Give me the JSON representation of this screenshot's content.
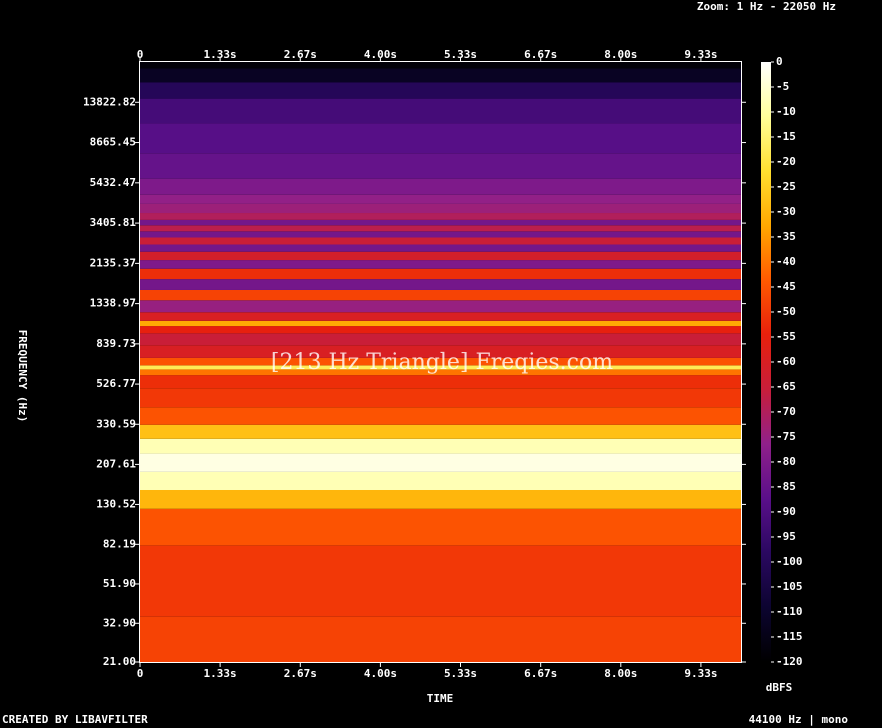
{
  "chart_data": {
    "type": "spectrogram",
    "title": "Zoom: 1 Hz - 22050 Hz",
    "watermark": "[213 Hz Triangle] Freqies.com",
    "xlabel": "TIME",
    "ylabel": "FREQUENCY (Hz)",
    "colorbar_label": "dBFS",
    "footer_left": "CREATED BY LIBAVFILTER",
    "footer_right": "44100 Hz | mono",
    "ylog": true,
    "xlim": [
      0,
      10
    ],
    "xticks": [
      0,
      {
        "value": 1.333,
        "label": "1.33s"
      },
      {
        "value": 2.667,
        "label": "2.67s"
      },
      {
        "value": 4.0,
        "label": "4.00s"
      },
      {
        "value": 5.333,
        "label": "5.33s"
      },
      {
        "value": 6.667,
        "label": "6.67s"
      },
      {
        "value": 8.0,
        "label": "8.00s"
      },
      {
        "value": 9.333,
        "label": "9.33s"
      }
    ],
    "ylim": [
      21,
      22050
    ],
    "yticks": [
      {
        "value": 21,
        "label": "21.00"
      },
      {
        "value": 32.9,
        "label": "32.90"
      },
      {
        "value": 51.9,
        "label": "51.90"
      },
      {
        "value": 82.19,
        "label": "82.19"
      },
      {
        "value": 130.52,
        "label": "130.52"
      },
      {
        "value": 207.61,
        "label": "207.61"
      },
      {
        "value": 330.59,
        "label": "330.59"
      },
      {
        "value": 526.77,
        "label": "526.77"
      },
      {
        "value": 839.73,
        "label": "839.73"
      },
      {
        "value": 1338.97,
        "label": "1338.97"
      },
      {
        "value": 2135.37,
        "label": "2135.37"
      },
      {
        "value": 3405.81,
        "label": "3405.81"
      },
      {
        "value": 5432.47,
        "label": "5432.47"
      },
      {
        "value": 8665.45,
        "label": "8665.45"
      },
      {
        "value": 13822.82,
        "label": "13822.82"
      }
    ],
    "clim": [
      -120,
      0
    ],
    "cticks": [
      0,
      -5,
      -10,
      -15,
      -20,
      -25,
      -30,
      -35,
      -40,
      -45,
      -50,
      -55,
      -60,
      -65,
      -70,
      -75,
      -80,
      -85,
      -90,
      -95,
      -100,
      -105,
      -110,
      -115,
      -120
    ],
    "colormap": [
      "#000000",
      "#0c0430",
      "#2a0860",
      "#5a0f8a",
      "#90208a",
      "#c81e3a",
      "#e8200c",
      "#ff5a00",
      "#ffa800",
      "#ffe030",
      "#ffff9a",
      "#ffffff"
    ],
    "frequencies": [
      21,
      60,
      110,
      140,
      170,
      213,
      260,
      300,
      360,
      450,
      560,
      610,
      639,
      670,
      760,
      900,
      1000,
      1065,
      1130,
      1300,
      1491,
      1650,
      1917,
      2100,
      2343,
      2550,
      2769,
      3000,
      3195,
      3450,
      3621,
      4047,
      4473,
      5000,
      6500,
      9000,
      13000,
      16000,
      19000,
      22050
    ],
    "levels": [
      -48,
      -50,
      -45,
      -30,
      -8,
      -3,
      -8,
      -28,
      -45,
      -50,
      -52,
      -40,
      -18,
      -45,
      -60,
      -65,
      -55,
      -32,
      -60,
      -75,
      -48,
      -82,
      -52,
      -80,
      -62,
      -82,
      -65,
      -82,
      -68,
      -82,
      -70,
      -74,
      -76,
      -80,
      -85,
      -88,
      -92,
      -100,
      -112,
      -118
    ]
  }
}
